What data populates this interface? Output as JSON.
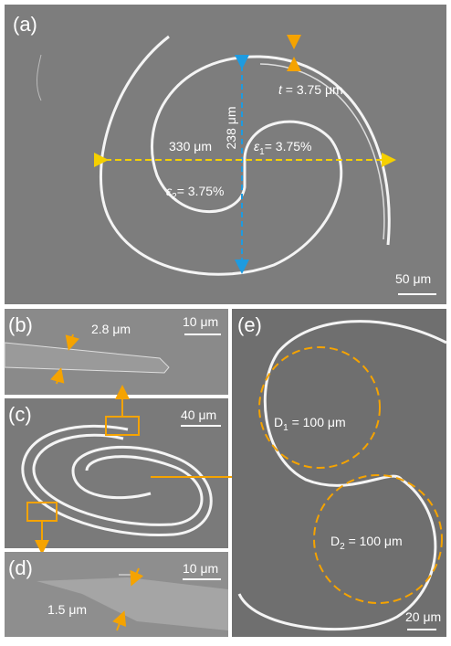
{
  "panel_a": {
    "label": "(a)",
    "thickness": {
      "symbol": "t",
      "text": " = 3.75 μm"
    },
    "height": "238 μm",
    "width": "330 μm",
    "strain_1": {
      "symbol": "ε",
      "subscript": "1",
      "text": "= 3.75%"
    },
    "strain_2": {
      "symbol": "ε",
      "subscript": "2",
      "text": "= 3.75%"
    },
    "scale": "50 μm"
  },
  "panel_b": {
    "label": "(b)",
    "thickness": "2.8 μm",
    "scale": "10 μm"
  },
  "panel_c": {
    "label": "(c)",
    "scale": "40 μm"
  },
  "panel_d": {
    "label": "(d)",
    "thickness": "1.5 μm",
    "scale": "10 μm"
  },
  "panel_e": {
    "label": "(e)",
    "diameter_1": {
      "symbol": "D",
      "subscript": "1",
      "text": " = 100 μm"
    },
    "diameter_2": {
      "symbol": "D",
      "subscript": "2",
      "text": " = 100 μm"
    },
    "scale": "20 μm"
  }
}
